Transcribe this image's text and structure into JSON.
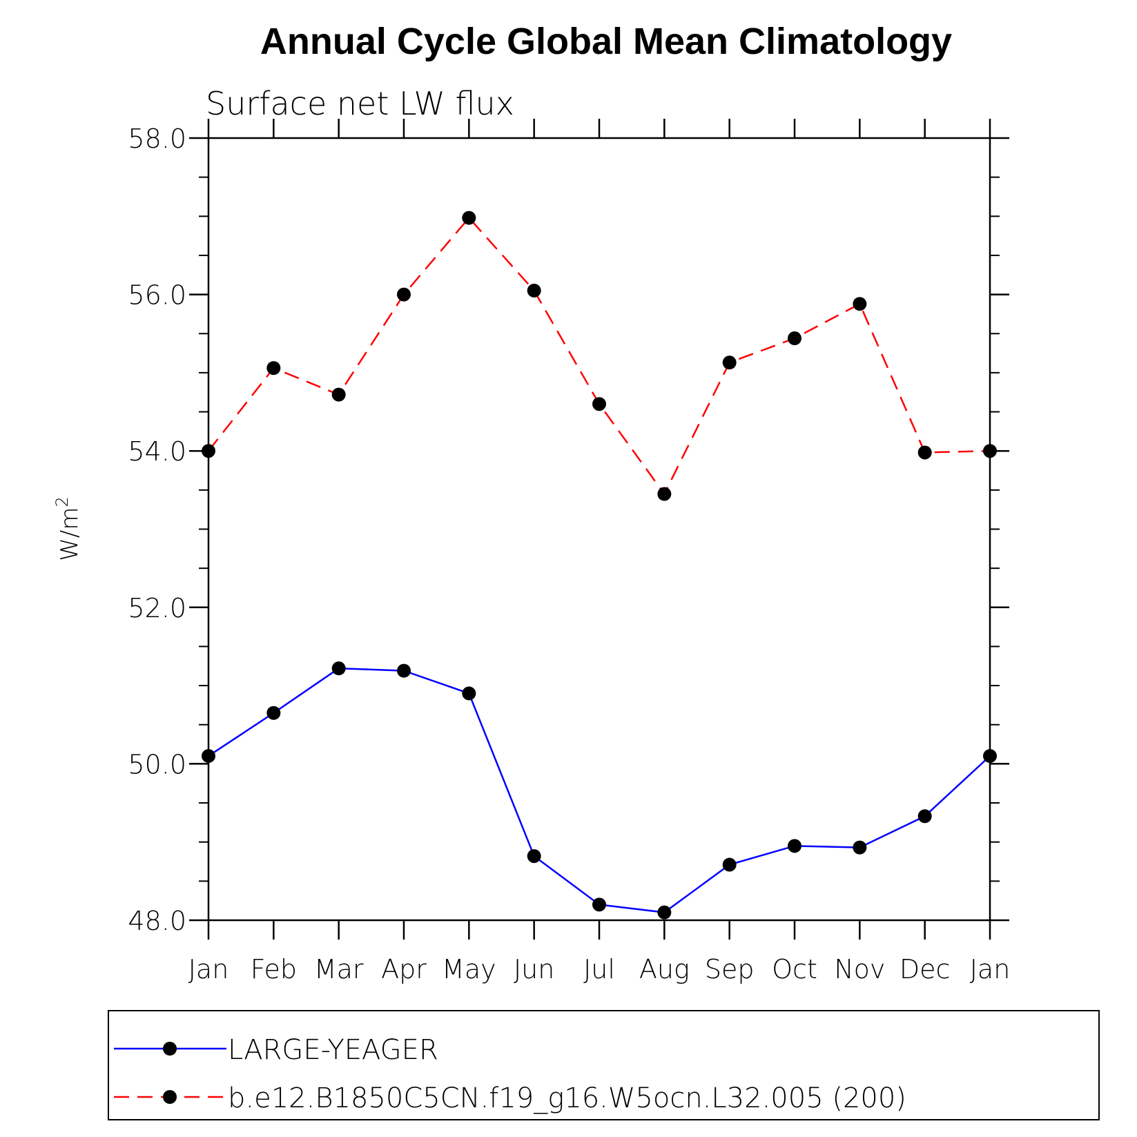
{
  "chart_data": {
    "type": "line",
    "title": "Annual Cycle Global Mean Climatology",
    "subtitle": "Surface net LW flux",
    "ylabel": "W/m",
    "ylabel_superscript": "2",
    "categories": [
      "Jan",
      "Feb",
      "Mar",
      "Apr",
      "May",
      "Jun",
      "Jul",
      "Aug",
      "Sep",
      "Oct",
      "Nov",
      "Dec",
      "Jan"
    ],
    "ylim": [
      48.0,
      58.0
    ],
    "yticks": [
      "48.0",
      "50.0",
      "52.0",
      "54.0",
      "56.0",
      "58.0"
    ],
    "yminor_step": 0.5,
    "series": [
      {
        "name": "LARGE-YEAGER",
        "color": "#0000ff",
        "dash": "solid",
        "marker": "circle",
        "values": [
          50.1,
          50.65,
          51.22,
          51.19,
          50.9,
          48.82,
          48.2,
          48.1,
          48.71,
          48.95,
          48.93,
          49.33,
          50.1
        ]
      },
      {
        "name": "b.e12.B1850C5CN.f19_g16.W5ocn.L32.005 (200)",
        "color": "#ff0000",
        "dash": "dashed",
        "marker": "circle",
        "values": [
          54.0,
          55.06,
          54.72,
          56.0,
          56.98,
          56.05,
          54.6,
          53.45,
          55.13,
          55.44,
          55.88,
          53.98,
          54.0
        ]
      }
    ],
    "legend_position": "bottom",
    "grid": false
  }
}
